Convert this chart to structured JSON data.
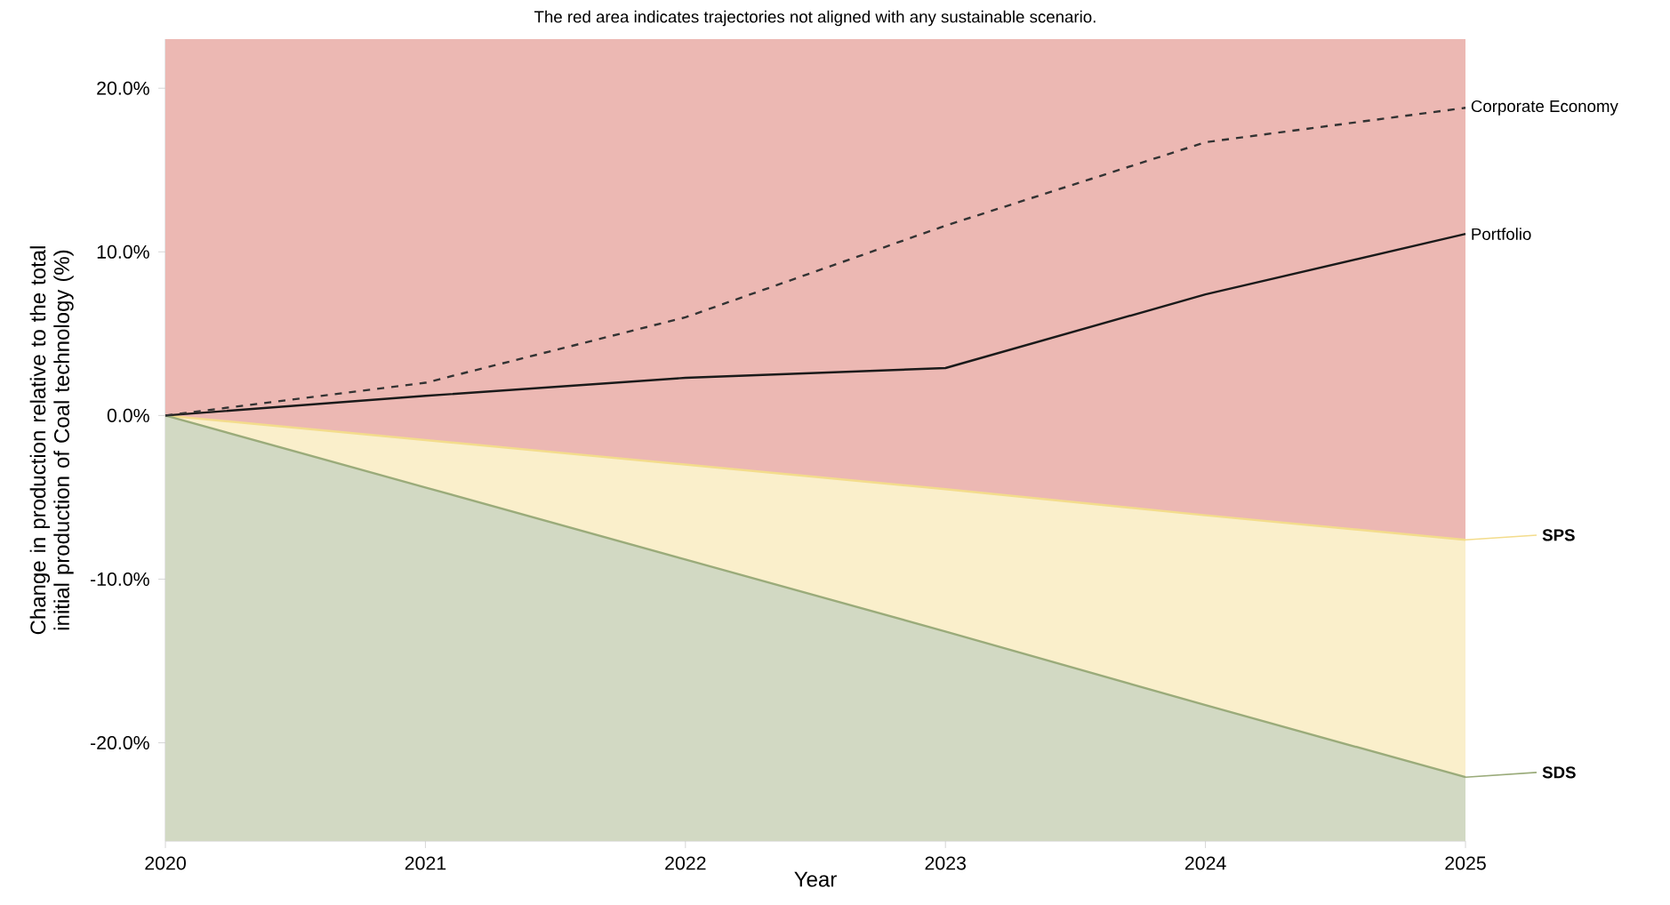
{
  "chart_data": {
    "type": "line",
    "title": "The red area indicates trajectories not aligned with any sustainable scenario.",
    "xlabel": "Year",
    "ylabel": "Change in production relative to the total initial production of Coal technology (%)",
    "x": [
      2020,
      2021,
      2022,
      2023,
      2024,
      2025
    ],
    "series": [
      {
        "name": "SPS",
        "color": "#f3dc8c",
        "values": [
          0,
          -1.5,
          -3.0,
          -4.5,
          -6.1,
          -7.6
        ],
        "upper": [
          0,
          -1.5,
          -3.0,
          -4.5,
          -6.1,
          -7.6
        ],
        "lower": [
          0,
          -4.4,
          -8.8,
          -13.2,
          -17.7,
          -22.1
        ]
      },
      {
        "name": "SDS",
        "color": "#9aab7a",
        "values": [
          0,
          -4.4,
          -8.8,
          -13.2,
          -17.7,
          -22.1
        ],
        "upper": [
          0,
          -4.4,
          -8.8,
          -13.2,
          -17.7,
          -22.1
        ],
        "lower": [
          -26,
          -26,
          -26,
          -26,
          -26,
          -26
        ]
      },
      {
        "name": "Portfolio",
        "color": "#1a1a1a",
        "line_style": "solid",
        "values": [
          0,
          1.2,
          2.3,
          2.9,
          7.4,
          11.1
        ]
      },
      {
        "name": "Corporate Economy",
        "color": "#333333",
        "line_style": "dashed",
        "values": [
          0,
          2.0,
          6.0,
          11.6,
          16.7,
          18.8
        ]
      }
    ],
    "legend": "right",
    "bands": [
      {
        "axis": "y",
        "from": -7.6,
        "to": 23,
        "color": "#ecb8b3"
      }
    ],
    "xlim": [
      2020,
      2025
    ],
    "ylim": [
      -26,
      23
    ],
    "xticks": [
      2020,
      2021,
      2022,
      2023,
      2024,
      2025
    ],
    "yticks": [
      {
        "value": -20,
        "label": "-20.0%"
      },
      {
        "value": -10,
        "label": "-10.0%"
      },
      {
        "value": 0,
        "label": "0.0%"
      },
      {
        "value": 10,
        "label": "10.0%"
      },
      {
        "value": 20,
        "label": "20.0%"
      }
    ]
  }
}
